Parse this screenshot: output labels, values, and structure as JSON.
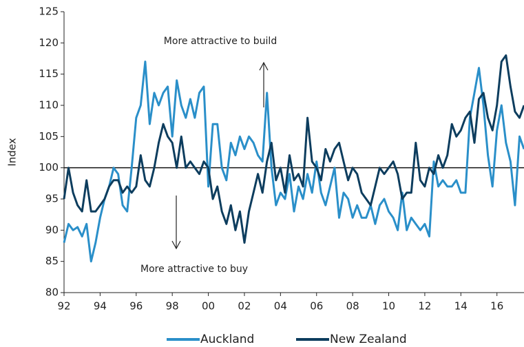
{
  "chart_data": {
    "type": "line",
    "y_label": "Index",
    "annotations": [
      "More attractive to build",
      "More attractive to buy"
    ],
    "reference_line": 100,
    "x": [
      1992,
      1992.25,
      1992.5,
      1992.75,
      1993,
      1993.25,
      1993.5,
      1993.75,
      1994,
      1994.25,
      1994.5,
      1994.75,
      1995,
      1995.25,
      1995.5,
      1995.75,
      1996,
      1996.25,
      1996.5,
      1996.75,
      1997,
      1997.25,
      1997.5,
      1997.75,
      1998,
      1998.25,
      1998.5,
      1998.75,
      1999,
      1999.25,
      1999.5,
      1999.75,
      2000,
      2000.25,
      2000.5,
      2000.75,
      2001,
      2001.25,
      2001.5,
      2001.75,
      2002,
      2002.25,
      2002.5,
      2002.75,
      2003,
      2003.25,
      2003.5,
      2003.75,
      2004,
      2004.25,
      2004.5,
      2004.75,
      2005,
      2005.25,
      2005.5,
      2005.75,
      2006,
      2006.25,
      2006.5,
      2006.75,
      2007,
      2007.25,
      2007.5,
      2007.75,
      2008,
      2008.25,
      2008.5,
      2008.75,
      2009,
      2009.25,
      2009.5,
      2009.75,
      2010,
      2010.25,
      2010.5,
      2010.75,
      2011,
      2011.25,
      2011.5,
      2011.75,
      2012,
      2012.25,
      2012.5,
      2012.75,
      2013,
      2013.25,
      2013.5,
      2013.75,
      2014,
      2014.25,
      2014.5,
      2014.75,
      2015,
      2015.25,
      2015.5,
      2015.75,
      2016,
      2016.25,
      2016.5,
      2016.75,
      2017,
      2017.25,
      2017.5
    ],
    "series": [
      {
        "name": "Auckland",
        "color": "#2a8fc9",
        "values": [
          88,
          91,
          90,
          90.5,
          89,
          91,
          85,
          88,
          92,
          95,
          97,
          100,
          99,
          94,
          93,
          100,
          108,
          110,
          117,
          107,
          112,
          110,
          112,
          113,
          105,
          114,
          110,
          108,
          111,
          108,
          112,
          113,
          97,
          107,
          107,
          100,
          98,
          104,
          102,
          105,
          103,
          105,
          104,
          102,
          101,
          112,
          100,
          94,
          96,
          95,
          99,
          93,
          97,
          95,
          99,
          96,
          101,
          96,
          94,
          97,
          100,
          92,
          96,
          95,
          92,
          94,
          92,
          92,
          94,
          91,
          94,
          95,
          93,
          92,
          90,
          96,
          90,
          92,
          91,
          90,
          91,
          89,
          101,
          97,
          98,
          97,
          97,
          98,
          96,
          96,
          108,
          112,
          116,
          110,
          102,
          97,
          106,
          110,
          104,
          101,
          94,
          105,
          103
        ]
      },
      {
        "name": "New Zealand",
        "color": "#0d3d5e",
        "values": [
          95,
          100,
          96,
          94,
          93,
          98,
          93,
          93,
          94,
          95,
          97,
          98,
          98,
          96,
          97,
          96,
          97,
          102,
          98,
          97,
          100,
          104,
          107,
          105,
          104,
          100,
          105,
          100,
          101,
          100,
          99,
          101,
          100,
          95,
          97,
          93,
          91,
          94,
          90,
          93,
          88,
          93,
          96,
          99,
          96,
          101,
          104,
          98,
          100,
          96,
          102,
          98,
          99,
          97,
          108,
          101,
          100,
          98,
          103,
          101,
          103,
          104,
          101,
          98,
          100,
          99,
          96,
          95,
          94,
          97,
          100,
          99,
          100,
          101,
          99,
          95,
          96,
          96,
          104,
          98,
          97,
          100,
          99,
          102,
          100,
          102,
          107,
          105,
          106,
          108,
          109,
          104,
          111,
          112,
          108,
          106,
          110,
          117,
          118,
          113,
          109,
          108,
          110
        ]
      }
    ],
    "xlim": [
      1992,
      2017.5
    ],
    "ylim": [
      80,
      125
    ],
    "xticks": [
      {
        "value": 1992,
        "label": "92"
      },
      {
        "value": 1994,
        "label": "94"
      },
      {
        "value": 1996,
        "label": "96"
      },
      {
        "value": 1998,
        "label": "98"
      },
      {
        "value": 2000,
        "label": "00"
      },
      {
        "value": 2002,
        "label": "02"
      },
      {
        "value": 2004,
        "label": "04"
      },
      {
        "value": 2006,
        "label": "06"
      },
      {
        "value": 2008,
        "label": "08"
      },
      {
        "value": 2010,
        "label": "10"
      },
      {
        "value": 2012,
        "label": "12"
      },
      {
        "value": 2014,
        "label": "14"
      },
      {
        "value": 2016,
        "label": "16"
      }
    ],
    "yticks": [
      80,
      85,
      90,
      95,
      100,
      105,
      110,
      115,
      120,
      125
    ],
    "legend": "bottom"
  }
}
